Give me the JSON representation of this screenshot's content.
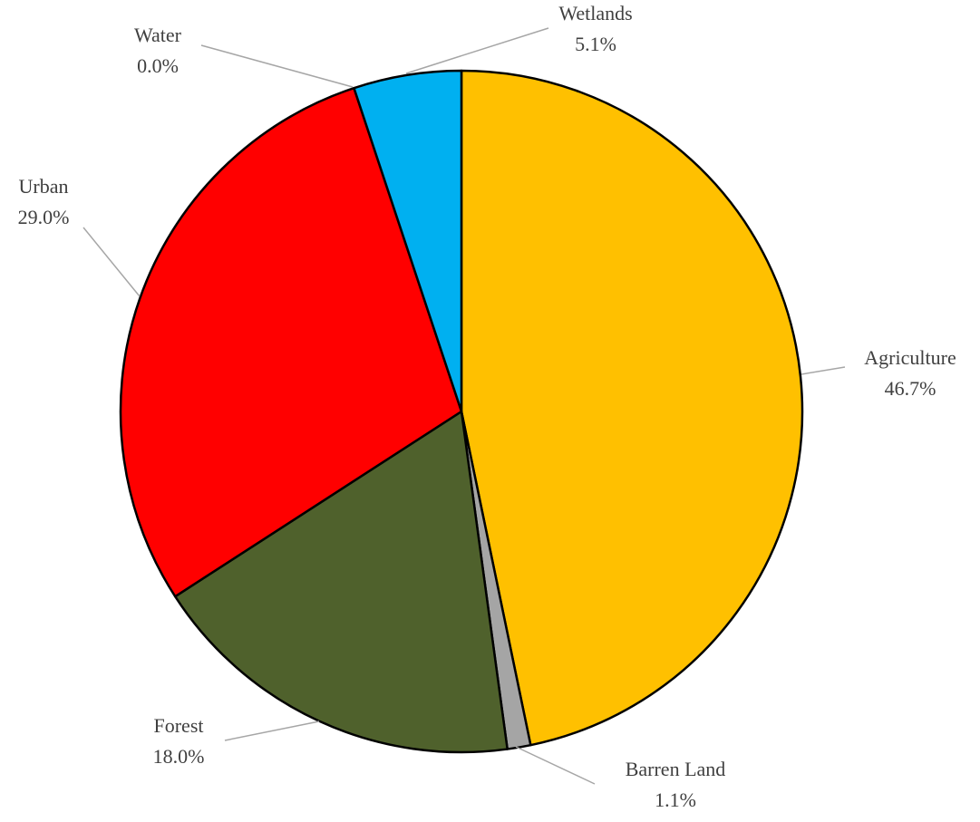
{
  "chart_data": {
    "type": "pie",
    "slices": [
      {
        "category": "Agriculture",
        "value": 46.7,
        "label": "46.7%",
        "color": "#FFC000"
      },
      {
        "category": "Barren Land",
        "value": 1.1,
        "label": "1.1%",
        "color": "#A5A5A5"
      },
      {
        "category": "Forest",
        "value": 18.0,
        "label": "18.0%",
        "color": "#4F612C"
      },
      {
        "category": "Urban",
        "value": 29.0,
        "label": "29.0%",
        "color": "#FF0000"
      },
      {
        "category": "Water",
        "value": 0.0,
        "label": "0.0%",
        "color": "#4472C4"
      },
      {
        "category": "Wetlands",
        "value": 5.1,
        "label": "5.1%",
        "color": "#00B0F0"
      }
    ],
    "start_angle": "12 o'clock",
    "direction": "clockwise",
    "legend": "none",
    "data_labels": "outside with leader lines"
  }
}
